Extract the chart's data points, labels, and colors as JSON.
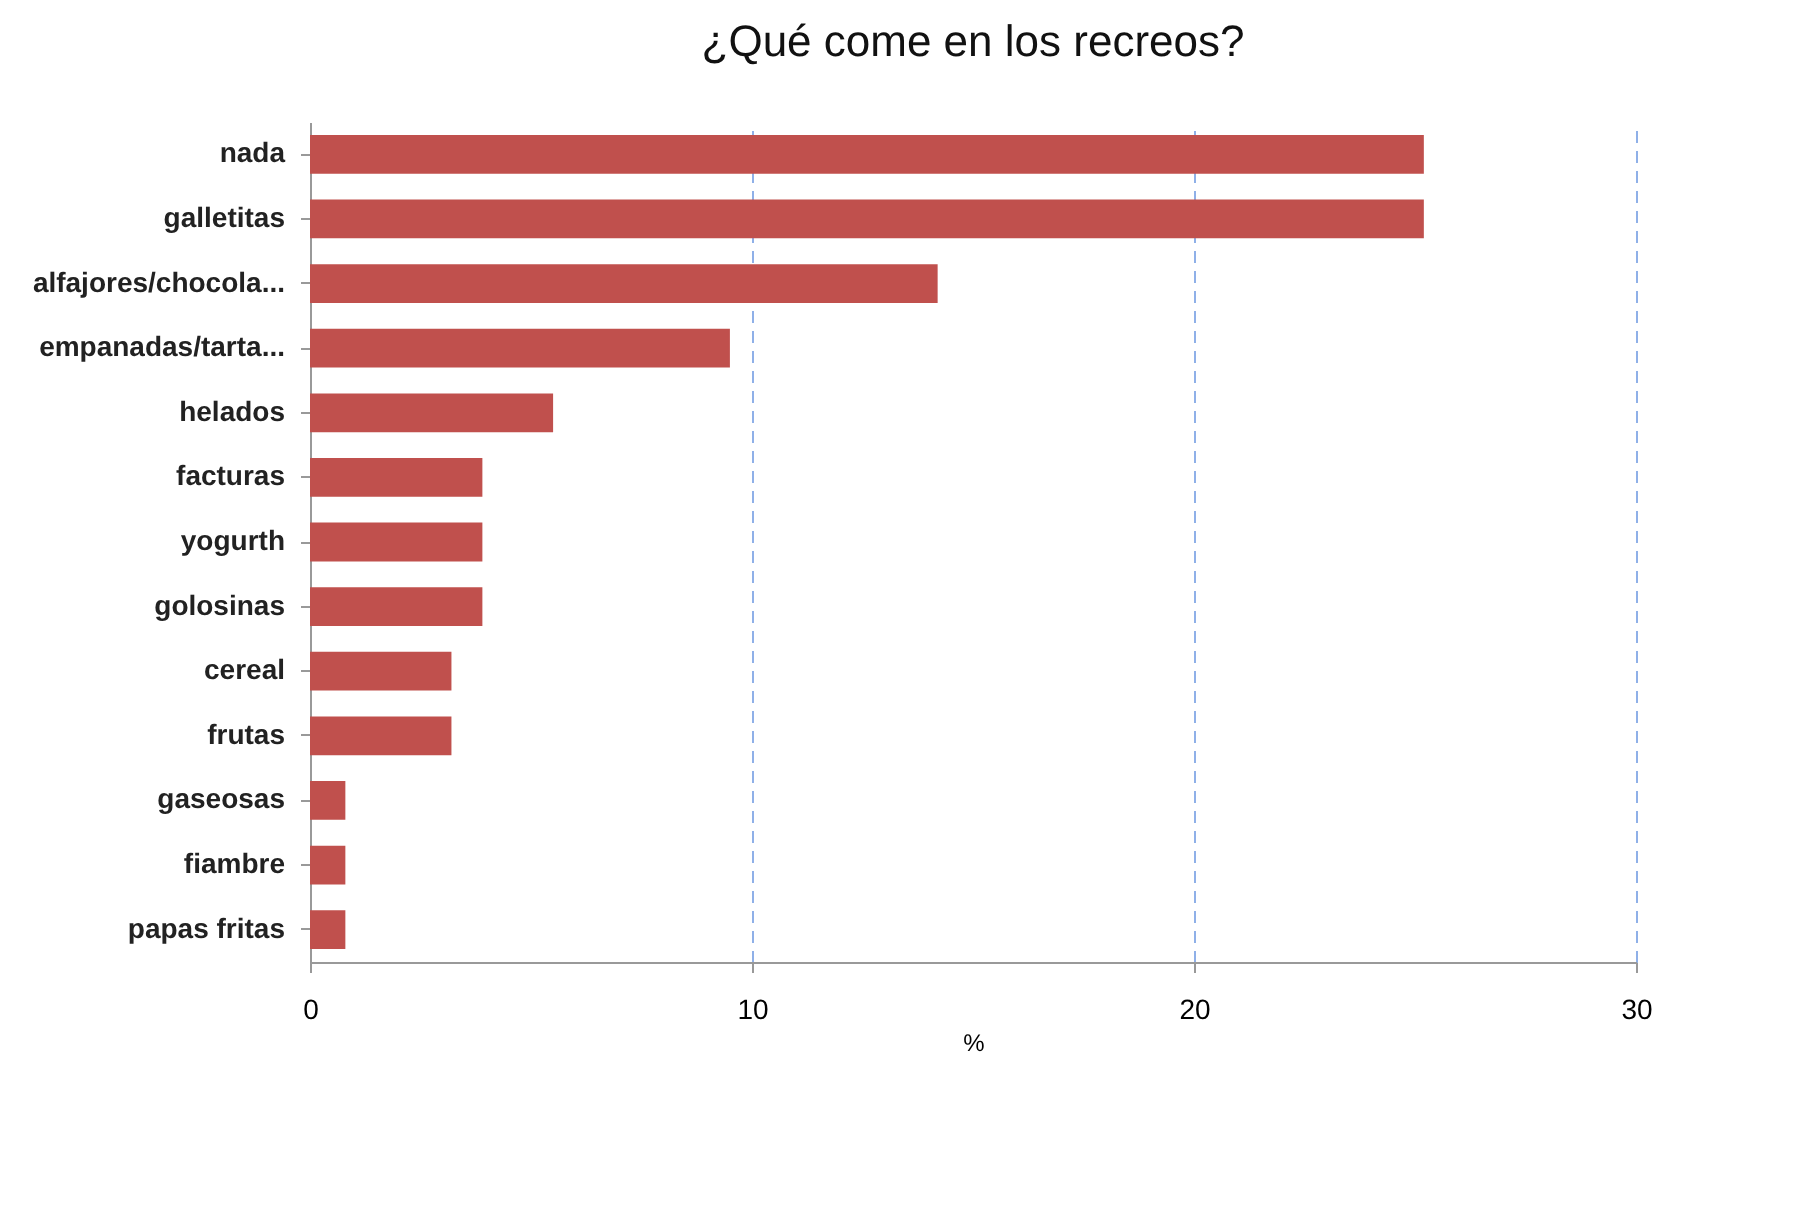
{
  "chart_data": {
    "type": "bar",
    "orientation": "horizontal",
    "title": "¿Qué come en los recreos?",
    "xlabel": "%",
    "categories": [
      "nada",
      "galletitas",
      "alfajores/chocola...",
      "empanadas/tarta...",
      "helados",
      "facturas",
      "yogurth",
      "golosinas",
      "cereal",
      "frutas",
      "gaseosas",
      "fiambre",
      "papas fritas"
    ],
    "values": [
      25.2,
      25.2,
      14.2,
      9.5,
      5.5,
      3.9,
      3.9,
      3.9,
      3.2,
      3.2,
      0.8,
      0.8,
      0.8
    ],
    "color": "#c0504d",
    "xlim": [
      0,
      30
    ],
    "xticks": [
      0,
      10,
      20,
      30
    ],
    "grid": "x"
  }
}
